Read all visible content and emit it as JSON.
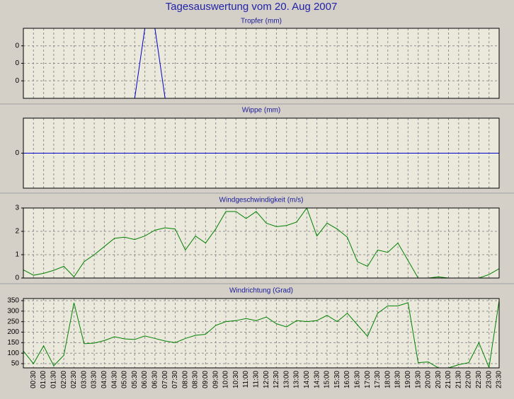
{
  "title": "Tagesauswertung vom 20. Aug 2007",
  "chart_data": [
    {
      "type": "line",
      "title": "Tropfer (mm)",
      "color": "#0000cc",
      "ylim": [
        0,
        1
      ],
      "yticks": [
        {
          "value": 0.25,
          "label": "0"
        },
        {
          "value": 0.5,
          "label": "0"
        },
        {
          "value": 0.75,
          "label": "0"
        }
      ],
      "grid": true,
      "values": [
        0,
        0,
        0,
        0,
        0,
        0,
        0,
        0,
        0,
        0,
        0,
        0,
        1,
        1,
        0,
        0,
        0,
        0,
        0,
        0,
        0,
        0,
        0,
        0,
        0,
        0,
        0,
        0,
        0,
        0,
        0,
        0,
        0,
        0,
        0,
        0,
        0,
        0,
        0,
        0,
        0,
        0,
        0,
        0,
        0,
        0,
        0,
        0
      ]
    },
    {
      "type": "line",
      "title": "Wippe (mm)",
      "color": "#0000cc",
      "ylim": [
        -1,
        1
      ],
      "yticks": [
        0
      ],
      "grid": true,
      "values": [
        0,
        0,
        0,
        0,
        0,
        0,
        0,
        0,
        0,
        0,
        0,
        0,
        0,
        0,
        0,
        0,
        0,
        0,
        0,
        0,
        0,
        0,
        0,
        0,
        0,
        0,
        0,
        0,
        0,
        0,
        0,
        0,
        0,
        0,
        0,
        0,
        0,
        0,
        0,
        0,
        0,
        0,
        0,
        0,
        0,
        0,
        0,
        0
      ]
    },
    {
      "type": "line",
      "title": "Windgeschwindigkeit (m/s)",
      "color": "#008000",
      "ylim": [
        0,
        3
      ],
      "yticks": [
        0,
        1,
        2,
        3
      ],
      "grid": true,
      "values": [
        0.35,
        0.12,
        0.2,
        0.33,
        0.5,
        0.05,
        0.7,
        1.0,
        1.35,
        1.7,
        1.75,
        1.65,
        1.8,
        2.05,
        2.15,
        2.1,
        1.2,
        1.8,
        1.5,
        2.1,
        2.85,
        2.85,
        2.55,
        2.85,
        2.35,
        2.2,
        2.25,
        2.4,
        3.0,
        1.8,
        2.35,
        2.1,
        1.75,
        0.7,
        0.5,
        1.2,
        1.1,
        1.5,
        0.75,
        0,
        0,
        0.05,
        0,
        0,
        0,
        0,
        0.15,
        0.4
      ]
    },
    {
      "type": "line",
      "title": "Windrichtung (Grad)",
      "color": "#008000",
      "ylim": [
        30,
        360
      ],
      "yticks": [
        50,
        100,
        150,
        200,
        250,
        300,
        350
      ],
      "grid": true,
      "categories": [
        null,
        "00:30",
        "01:00",
        "01:30",
        "02:00",
        "02:30",
        "03:00",
        "03:30",
        "04:00",
        "04:30",
        "05:00",
        "05:30",
        "06:00",
        "06:30",
        "07:00",
        "07:30",
        "08:00",
        "08:30",
        "09:00",
        "09:30",
        "10:00",
        "10:30",
        "11:00",
        "11:30",
        "12:00",
        "12:30",
        "13:00",
        "13:30",
        "14:00",
        "14:30",
        "15:00",
        "15:30",
        "16:00",
        "16:30",
        "17:00",
        "17:30",
        "18:00",
        "18:30",
        "19:00",
        "19:30",
        "20:00",
        "20:30",
        "21:00",
        "21:30",
        "22:00",
        "22:30",
        "23:00",
        "23:30"
      ],
      "values": [
        110,
        50,
        135,
        40,
        90,
        340,
        145,
        148,
        160,
        178,
        168,
        165,
        182,
        170,
        158,
        150,
        170,
        185,
        190,
        232,
        250,
        255,
        265,
        255,
        272,
        240,
        225,
        255,
        250,
        255,
        280,
        250,
        290,
        235,
        180,
        290,
        325,
        325,
        340,
        55,
        58,
        30,
        30,
        45,
        55,
        150,
        32,
        350
      ]
    }
  ]
}
